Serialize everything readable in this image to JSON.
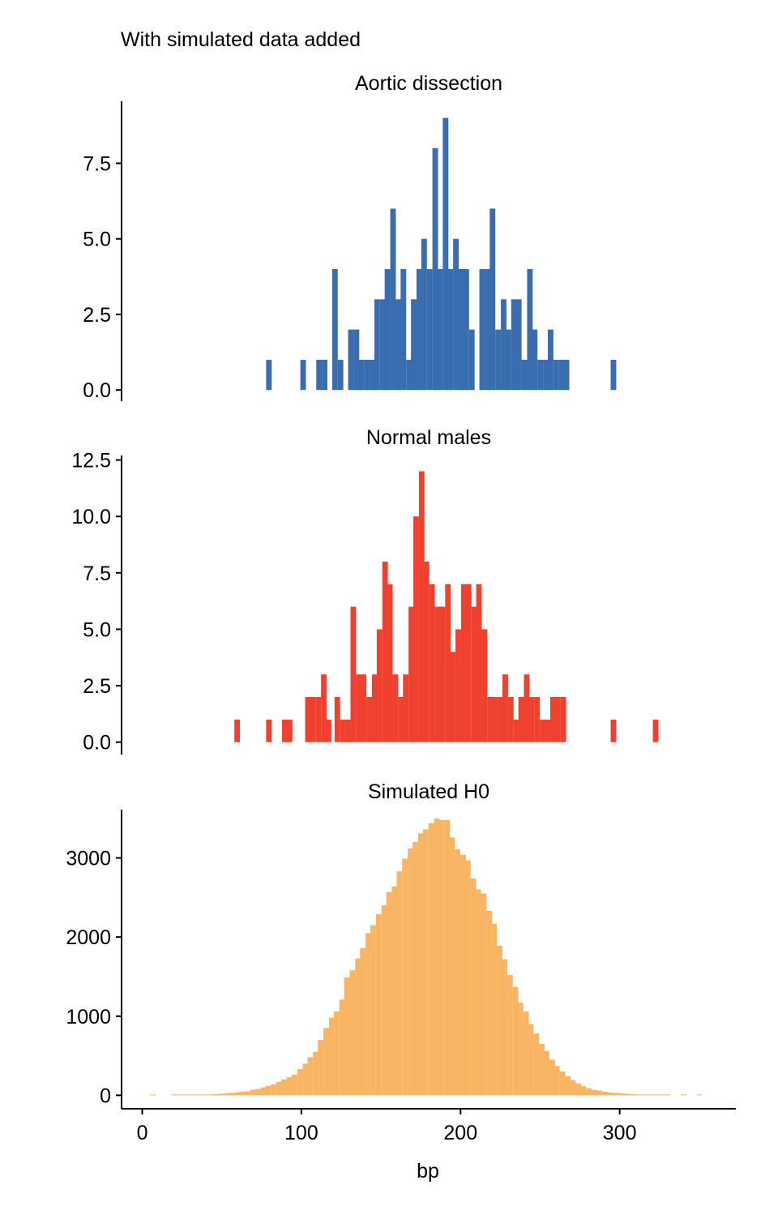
{
  "page_title": "With simulated data added",
  "chart_data": {
    "type": "bar",
    "title": "With simulated data added",
    "xlabel": "bp",
    "x_ticks": [
      0,
      100,
      200,
      300
    ],
    "xlim": [
      -13,
      373
    ],
    "bin_width": 3.3,
    "grid": false,
    "panels": [
      {
        "name": "Aortic dissection",
        "color": "#3a6db0",
        "ylim": [
          -0.37,
          9.55
        ],
        "y_ticks": [
          0.0,
          2.5,
          5.0,
          7.5
        ],
        "y_tick_labels": [
          "0.0",
          "2.5",
          "5.0",
          "7.5"
        ],
        "bins": [
          {
            "x": 79.5,
            "count": 1
          },
          {
            "x": 101.0,
            "count": 1
          },
          {
            "x": 111.0,
            "count": 1
          },
          {
            "x": 114.5,
            "count": 1
          },
          {
            "x": 121.0,
            "count": 4
          },
          {
            "x": 124.5,
            "count": 1
          },
          {
            "x": 131.0,
            "count": 2
          },
          {
            "x": 134.5,
            "count": 2
          },
          {
            "x": 137.5,
            "count": 1
          },
          {
            "x": 141.0,
            "count": 1
          },
          {
            "x": 144.5,
            "count": 1
          },
          {
            "x": 147.5,
            "count": 3
          },
          {
            "x": 151.0,
            "count": 3
          },
          {
            "x": 154.0,
            "count": 4
          },
          {
            "x": 157.5,
            "count": 6
          },
          {
            "x": 161.0,
            "count": 3
          },
          {
            "x": 164.0,
            "count": 4
          },
          {
            "x": 167.5,
            "count": 1
          },
          {
            "x": 170.5,
            "count": 3
          },
          {
            "x": 174.0,
            "count": 4
          },
          {
            "x": 177.0,
            "count": 5
          },
          {
            "x": 180.5,
            "count": 4
          },
          {
            "x": 184.0,
            "count": 8
          },
          {
            "x": 187.0,
            "count": 4
          },
          {
            "x": 190.5,
            "count": 9
          },
          {
            "x": 193.5,
            "count": 4
          },
          {
            "x": 197.0,
            "count": 5
          },
          {
            "x": 200.5,
            "count": 4
          },
          {
            "x": 203.5,
            "count": 4
          },
          {
            "x": 207.0,
            "count": 2
          },
          {
            "x": 213.5,
            "count": 4
          },
          {
            "x": 217.0,
            "count": 4
          },
          {
            "x": 220.0,
            "count": 6
          },
          {
            "x": 223.5,
            "count": 2
          },
          {
            "x": 227.0,
            "count": 3
          },
          {
            "x": 230.0,
            "count": 2
          },
          {
            "x": 233.5,
            "count": 3
          },
          {
            "x": 236.5,
            "count": 3
          },
          {
            "x": 240.0,
            "count": 1
          },
          {
            "x": 243.5,
            "count": 4
          },
          {
            "x": 246.5,
            "count": 2
          },
          {
            "x": 250.0,
            "count": 1
          },
          {
            "x": 253.5,
            "count": 1
          },
          {
            "x": 256.5,
            "count": 2
          },
          {
            "x": 260.0,
            "count": 1
          },
          {
            "x": 263.5,
            "count": 1
          },
          {
            "x": 266.5,
            "count": 1
          },
          {
            "x": 296.0,
            "count": 1
          }
        ]
      },
      {
        "name": "Normal males",
        "color": "#f0402f",
        "ylim": [
          -0.55,
          12.7
        ],
        "y_ticks": [
          0.0,
          2.5,
          5.0,
          7.5,
          10.0,
          12.5
        ],
        "y_tick_labels": [
          "0.0",
          "2.5",
          "5.0",
          "7.5",
          "10.0",
          "12.5"
        ],
        "bins": [
          {
            "x": 59.5,
            "count": 1
          },
          {
            "x": 79.5,
            "count": 1
          },
          {
            "x": 89.5,
            "count": 1
          },
          {
            "x": 92.5,
            "count": 1
          },
          {
            "x": 104.0,
            "count": 2
          },
          {
            "x": 107.0,
            "count": 2
          },
          {
            "x": 110.5,
            "count": 2
          },
          {
            "x": 114.0,
            "count": 3
          },
          {
            "x": 117.0,
            "count": 1
          },
          {
            "x": 122.5,
            "count": 2
          },
          {
            "x": 126.0,
            "count": 1
          },
          {
            "x": 129.5,
            "count": 1
          },
          {
            "x": 132.5,
            "count": 6
          },
          {
            "x": 136.0,
            "count": 3
          },
          {
            "x": 139.0,
            "count": 3
          },
          {
            "x": 142.5,
            "count": 2
          },
          {
            "x": 146.0,
            "count": 3
          },
          {
            "x": 149.0,
            "count": 5
          },
          {
            "x": 152.5,
            "count": 8
          },
          {
            "x": 155.5,
            "count": 7
          },
          {
            "x": 159.0,
            "count": 3
          },
          {
            "x": 162.5,
            "count": 2
          },
          {
            "x": 165.5,
            "count": 3
          },
          {
            "x": 169.0,
            "count": 6
          },
          {
            "x": 172.0,
            "count": 10
          },
          {
            "x": 175.5,
            "count": 12
          },
          {
            "x": 178.5,
            "count": 8
          },
          {
            "x": 182.0,
            "count": 7
          },
          {
            "x": 185.5,
            "count": 6
          },
          {
            "x": 188.5,
            "count": 6
          },
          {
            "x": 192.0,
            "count": 7
          },
          {
            "x": 195.0,
            "count": 4
          },
          {
            "x": 198.5,
            "count": 5
          },
          {
            "x": 202.0,
            "count": 7
          },
          {
            "x": 205.0,
            "count": 7
          },
          {
            "x": 208.5,
            "count": 6
          },
          {
            "x": 211.5,
            "count": 7
          },
          {
            "x": 215.0,
            "count": 5
          },
          {
            "x": 218.5,
            "count": 2
          },
          {
            "x": 221.5,
            "count": 2
          },
          {
            "x": 225.0,
            "count": 2
          },
          {
            "x": 228.0,
            "count": 3
          },
          {
            "x": 231.5,
            "count": 2
          },
          {
            "x": 235.0,
            "count": 1
          },
          {
            "x": 238.0,
            "count": 2
          },
          {
            "x": 241.5,
            "count": 3
          },
          {
            "x": 244.5,
            "count": 2
          },
          {
            "x": 248.0,
            "count": 2
          },
          {
            "x": 251.5,
            "count": 1
          },
          {
            "x": 254.5,
            "count": 1
          },
          {
            "x": 258.0,
            "count": 2
          },
          {
            "x": 261.0,
            "count": 2
          },
          {
            "x": 264.5,
            "count": 2
          },
          {
            "x": 296.0,
            "count": 1
          },
          {
            "x": 322.5,
            "count": 1
          }
        ]
      },
      {
        "name": "Simulated H0",
        "color": "#f9b464",
        "ylim": [
          -170,
          3610
        ],
        "y_ticks": [
          0,
          1000,
          2000,
          3000
        ],
        "y_tick_labels": [
          "0",
          "1000",
          "2000",
          "3000"
        ],
        "bins": [
          {
            "x": 6.5,
            "count": 5
          },
          {
            "x": 20.0,
            "count": 8
          },
          {
            "x": 23.0,
            "count": 8
          },
          {
            "x": 26.5,
            "count": 8
          },
          {
            "x": 29.5,
            "count": 8
          },
          {
            "x": 33.0,
            "count": 8
          },
          {
            "x": 36.5,
            "count": 10
          },
          {
            "x": 39.5,
            "count": 10
          },
          {
            "x": 43.0,
            "count": 10
          },
          {
            "x": 46.0,
            "count": 15
          },
          {
            "x": 49.5,
            "count": 20
          },
          {
            "x": 53.0,
            "count": 25
          },
          {
            "x": 56.0,
            "count": 30
          },
          {
            "x": 59.5,
            "count": 35
          },
          {
            "x": 62.5,
            "count": 45
          },
          {
            "x": 66.0,
            "count": 50
          },
          {
            "x": 69.5,
            "count": 70
          },
          {
            "x": 72.5,
            "count": 80
          },
          {
            "x": 76.0,
            "count": 100
          },
          {
            "x": 79.0,
            "count": 120
          },
          {
            "x": 82.5,
            "count": 140
          },
          {
            "x": 86.0,
            "count": 170
          },
          {
            "x": 89.0,
            "count": 200
          },
          {
            "x": 92.5,
            "count": 230
          },
          {
            "x": 95.5,
            "count": 260
          },
          {
            "x": 99.0,
            "count": 330
          },
          {
            "x": 102.5,
            "count": 400
          },
          {
            "x": 105.5,
            "count": 480
          },
          {
            "x": 109.0,
            "count": 550
          },
          {
            "x": 112.0,
            "count": 700
          },
          {
            "x": 115.5,
            "count": 850
          },
          {
            "x": 119.0,
            "count": 980
          },
          {
            "x": 122.0,
            "count": 1060
          },
          {
            "x": 125.5,
            "count": 1210
          },
          {
            "x": 128.5,
            "count": 1490
          },
          {
            "x": 132.0,
            "count": 1580
          },
          {
            "x": 135.5,
            "count": 1730
          },
          {
            "x": 138.5,
            "count": 1860
          },
          {
            "x": 142.0,
            "count": 2050
          },
          {
            "x": 145.0,
            "count": 2150
          },
          {
            "x": 148.5,
            "count": 2290
          },
          {
            "x": 152.0,
            "count": 2400
          },
          {
            "x": 155.0,
            "count": 2570
          },
          {
            "x": 158.5,
            "count": 2640
          },
          {
            "x": 161.5,
            "count": 2830
          },
          {
            "x": 165.0,
            "count": 2990
          },
          {
            "x": 168.5,
            "count": 3120
          },
          {
            "x": 171.5,
            "count": 3200
          },
          {
            "x": 175.0,
            "count": 3310
          },
          {
            "x": 178.0,
            "count": 3360
          },
          {
            "x": 181.5,
            "count": 3440
          },
          {
            "x": 185.0,
            "count": 3500
          },
          {
            "x": 188.0,
            "count": 3480
          },
          {
            "x": 191.5,
            "count": 3480
          },
          {
            "x": 194.5,
            "count": 3260
          },
          {
            "x": 198.0,
            "count": 3110
          },
          {
            "x": 201.5,
            "count": 3040
          },
          {
            "x": 204.5,
            "count": 2970
          },
          {
            "x": 208.0,
            "count": 2740
          },
          {
            "x": 211.0,
            "count": 2600
          },
          {
            "x": 214.5,
            "count": 2550
          },
          {
            "x": 218.0,
            "count": 2330
          },
          {
            "x": 221.0,
            "count": 2170
          },
          {
            "x": 224.5,
            "count": 1890
          },
          {
            "x": 227.5,
            "count": 1720
          },
          {
            "x": 231.0,
            "count": 1520
          },
          {
            "x": 234.5,
            "count": 1370
          },
          {
            "x": 237.5,
            "count": 1170
          },
          {
            "x": 241.0,
            "count": 1060
          },
          {
            "x": 244.0,
            "count": 900
          },
          {
            "x": 247.5,
            "count": 780
          },
          {
            "x": 251.0,
            "count": 650
          },
          {
            "x": 254.0,
            "count": 560
          },
          {
            "x": 257.5,
            "count": 450
          },
          {
            "x": 260.5,
            "count": 370
          },
          {
            "x": 264.0,
            "count": 300
          },
          {
            "x": 267.5,
            "count": 240
          },
          {
            "x": 270.5,
            "count": 190
          },
          {
            "x": 274.0,
            "count": 150
          },
          {
            "x": 277.0,
            "count": 115
          },
          {
            "x": 280.5,
            "count": 90
          },
          {
            "x": 284.0,
            "count": 70
          },
          {
            "x": 287.0,
            "count": 60
          },
          {
            "x": 290.5,
            "count": 45
          },
          {
            "x": 293.5,
            "count": 35
          },
          {
            "x": 297.0,
            "count": 30
          },
          {
            "x": 300.5,
            "count": 25
          },
          {
            "x": 303.5,
            "count": 20
          },
          {
            "x": 307.0,
            "count": 15
          },
          {
            "x": 310.0,
            "count": 12
          },
          {
            "x": 313.5,
            "count": 10
          },
          {
            "x": 317.0,
            "count": 8
          },
          {
            "x": 320.0,
            "count": 6
          },
          {
            "x": 323.5,
            "count": 5
          },
          {
            "x": 326.5,
            "count": 4
          },
          {
            "x": 330.0,
            "count": 3
          },
          {
            "x": 340.0,
            "count": 2
          },
          {
            "x": 350.0,
            "count": 2
          }
        ]
      }
    ]
  }
}
